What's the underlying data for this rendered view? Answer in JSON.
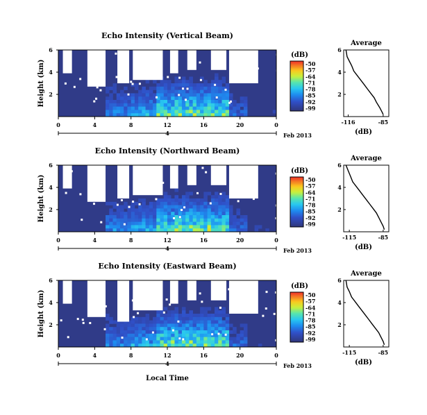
{
  "chart_data": [
    {
      "type": "heatmap",
      "title": "Echo Intensity (Vertical Beam)",
      "ylabel": "Height (km)",
      "x_ticks": [
        "0",
        "4",
        "8",
        "12",
        "16",
        "20",
        "0"
      ],
      "y_ticks": [
        "2",
        "4",
        "6"
      ],
      "date_label": "Feb 2013",
      "day_label": "4",
      "ylim": [
        0,
        6
      ],
      "xlim": [
        0,
        24
      ],
      "colorbar": {
        "unit": "(dB)",
        "ticks": [
          "-50",
          "-57",
          "-64",
          "-71",
          "-78",
          "-85",
          "-92",
          "-99"
        ]
      },
      "profile": {
        "title": "Average",
        "xlabel": "(dB)",
        "x_ticks": [
          "-116",
          "-85"
        ],
        "y_ticks": [
          "2",
          "4",
          "6"
        ],
        "xlim": [
          -120,
          -80
        ],
        "ylim": [
          0,
          6
        ],
        "x": [
          -118,
          -117,
          -115,
          -113,
          -111,
          -108,
          -105,
          -102,
          -99,
          -96,
          -93,
          -91,
          -88,
          -86,
          -85
        ],
        "y": [
          6.0,
          5.4,
          5.0,
          4.6,
          4.1,
          3.7,
          3.3,
          2.9,
          2.5,
          2.1,
          1.7,
          1.3,
          0.8,
          0.4,
          0.2
        ]
      }
    },
    {
      "type": "heatmap",
      "title": "Echo Intensity (Northward Beam)",
      "ylabel": "Height (km)",
      "x_ticks": [
        "0",
        "4",
        "8",
        "12",
        "16",
        "20",
        "0"
      ],
      "y_ticks": [
        "2",
        "4",
        "6"
      ],
      "date_label": "Feb 2013",
      "day_label": "4",
      "ylim": [
        0,
        6
      ],
      "xlim": [
        0,
        24
      ],
      "colorbar": {
        "unit": "(dB)",
        "ticks": [
          "-50",
          "-57",
          "-64",
          "-71",
          "-78",
          "-85",
          "-92",
          "-99"
        ]
      },
      "profile": {
        "title": "Average",
        "xlabel": "(dB)",
        "x_ticks": [
          "-115",
          "-85"
        ],
        "y_ticks": [
          "2",
          "4",
          "6"
        ],
        "xlim": [
          -120,
          -80
        ],
        "ylim": [
          0,
          6
        ],
        "x": [
          -118,
          -116,
          -114,
          -112,
          -109,
          -106,
          -103,
          -100,
          -97,
          -94,
          -91,
          -89,
          -87,
          -85,
          -84
        ],
        "y": [
          6.0,
          5.5,
          5.0,
          4.5,
          4.1,
          3.7,
          3.3,
          2.9,
          2.5,
          2.1,
          1.7,
          1.3,
          0.9,
          0.5,
          0.2
        ]
      }
    },
    {
      "type": "heatmap",
      "title": "Echo Intensity (Eastward Beam)",
      "ylabel": "Height (km)",
      "x_ticks": [
        "0",
        "4",
        "8",
        "12",
        "16",
        "20",
        "0"
      ],
      "y_ticks": [
        "2",
        "4",
        "6"
      ],
      "date_label": "Feb 2013",
      "day_label": "4",
      "xlabel": "Local Time",
      "ylim": [
        0,
        6
      ],
      "xlim": [
        0,
        24
      ],
      "colorbar": {
        "unit": "(dB)",
        "ticks": [
          "-50",
          "-57",
          "-64",
          "-71",
          "-78",
          "-85",
          "-92",
          "-99"
        ]
      },
      "profile": {
        "title": "Average",
        "xlabel": "(dB)",
        "x_ticks": [
          "-115",
          "-85"
        ],
        "y_ticks": [
          "2",
          "4",
          "6"
        ],
        "xlim": [
          -120,
          -80
        ],
        "ylim": [
          0,
          6
        ],
        "x": [
          -118,
          -117,
          -115,
          -113,
          -110,
          -107,
          -104,
          -101,
          -98,
          -95,
          -92,
          -89,
          -87,
          -85,
          -84
        ],
        "y": [
          6.0,
          5.4,
          5.0,
          4.5,
          4.1,
          3.7,
          3.3,
          2.9,
          2.5,
          2.1,
          1.7,
          1.3,
          0.9,
          0.5,
          0.2
        ]
      }
    }
  ]
}
